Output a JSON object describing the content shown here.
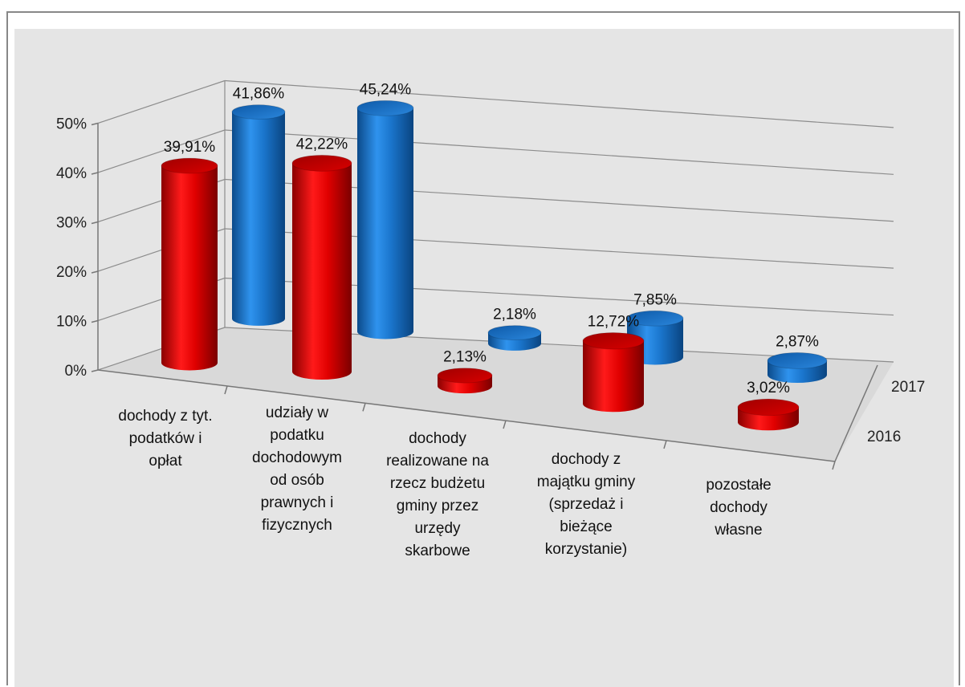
{
  "chart_data": {
    "type": "bar",
    "variant": "3d-cylinder",
    "title": "",
    "xlabel": "",
    "ylabel": "",
    "ylim": [
      0,
      50
    ],
    "y_ticks": [
      "0%",
      "10%",
      "20%",
      "30%",
      "40%",
      "50%"
    ],
    "categories": [
      [
        "dochody z tyt.",
        "podatków i",
        "opłat"
      ],
      [
        "udziały w",
        "podatku",
        "dochodowym",
        "od osób",
        "prawnych i",
        "fizycznych"
      ],
      [
        "dochody",
        "realizowane na",
        "rzecz budżetu",
        "gminy przez",
        "urzędy",
        "skarbowe"
      ],
      [
        "dochody z",
        "majątku gminy",
        "(sprzedaż i",
        "bieżące",
        "korzystanie)"
      ],
      [
        "pozostałe",
        "dochody",
        "własne"
      ]
    ],
    "series": [
      {
        "name": "2016",
        "color": "#cc0000",
        "values": [
          39.91,
          42.22,
          2.13,
          12.72,
          3.02
        ],
        "labels": [
          "39,91%",
          "42,22%",
          "2,13%",
          "12,72%",
          "3,02%"
        ]
      },
      {
        "name": "2017",
        "color": "#1a75cc",
        "values": [
          41.86,
          45.24,
          2.18,
          7.85,
          2.87
        ],
        "labels": [
          "41,86%",
          "45,24%",
          "2,18%",
          "7,85%",
          "2,87%"
        ]
      }
    ],
    "grid": true
  }
}
